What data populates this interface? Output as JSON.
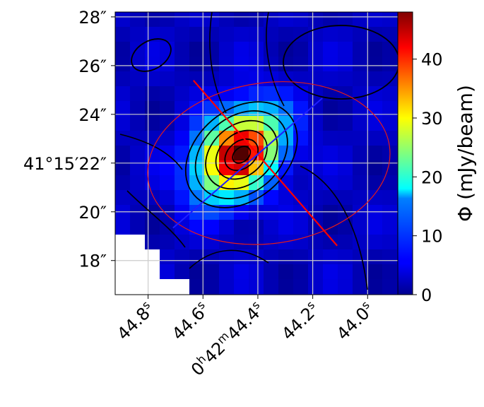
{
  "chart_data": {
    "type": "heatmap",
    "title": "",
    "xlabel": "",
    "ylabel": "",
    "colorbar": {
      "label": "Φ (mJy/beam)",
      "ticks": [
        "0",
        "10",
        "20",
        "30",
        "40"
      ],
      "range": [
        0,
        48
      ],
      "colormap": "jet"
    },
    "x_ticks": [
      {
        "label": "44.8",
        "unit": "s",
        "sec": 44.8
      },
      {
        "label": "44.6",
        "unit": "s",
        "sec": 44.6
      },
      {
        "label": "44.4",
        "unit": "s",
        "prefix_h": "0",
        "prefix_m": "42",
        "sec": 44.4
      },
      {
        "label": "44.2",
        "unit": "s",
        "sec": 44.2
      },
      {
        "label": "44.0",
        "unit": "s",
        "sec": 44.0
      }
    ],
    "y_ticks": [
      {
        "label": "28″",
        "arcsec": 28
      },
      {
        "label": "26″",
        "arcsec": 26
      },
      {
        "label": "24″",
        "arcsec": 24
      },
      {
        "label": "41°15′22″",
        "arcsec": 22
      },
      {
        "label": "20″",
        "arcsec": 20
      },
      {
        "label": "18″",
        "arcsec": 18
      }
    ],
    "x_range_sec": [
      44.92,
      43.89
    ],
    "y_range_arcsec": [
      16.6,
      28.2
    ],
    "peak_flux": 46,
    "peak_position": {
      "ra_sec": 44.47,
      "dec_arcsec": 22.4
    },
    "grid": true,
    "ellipse": {
      "center_ra_sec": 44.36,
      "center_dec_arcsec": 22.0,
      "semi_major_arcsec": 5.0,
      "semi_minor_arcsec": 3.3,
      "color": "#e31a1c"
    },
    "major_axis_line": {
      "color": "#ff0000"
    },
    "minor_axis_line": {
      "color": "#1f1fff"
    },
    "colors": {
      "contour": "#000000",
      "grid": "#cccccc",
      "blank": "#ffffff"
    }
  }
}
